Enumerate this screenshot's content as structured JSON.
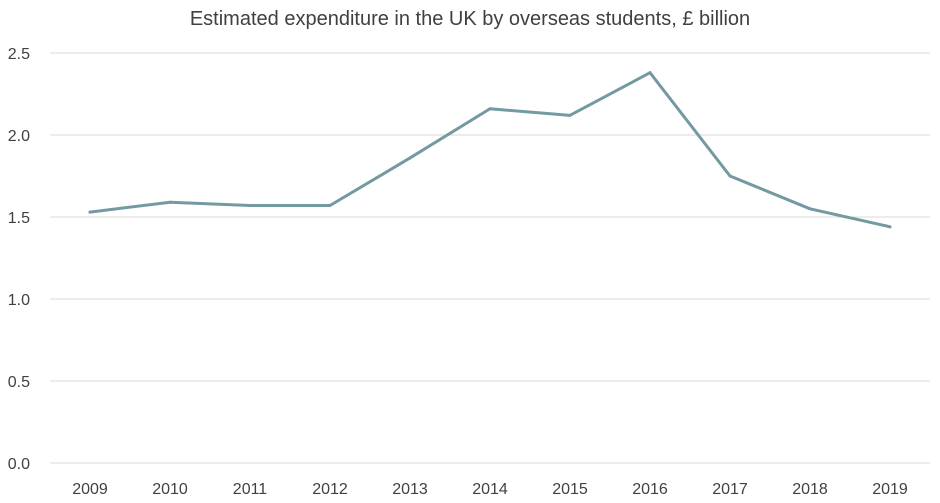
{
  "chart_data": {
    "type": "line",
    "title": "Estimated expenditure in the UK by overseas students, £ billion",
    "xlabel": "",
    "ylabel": "",
    "ylim": [
      0,
      2.5
    ],
    "yticks": [
      "0.0",
      "0.5",
      "1.0",
      "1.5",
      "2.0",
      "2.5"
    ],
    "grid": true,
    "legend": "none",
    "categories": [
      "2009",
      "2010",
      "2011",
      "2012",
      "2013",
      "2014",
      "2015",
      "2016",
      "2017",
      "2018",
      "2019"
    ],
    "series": [
      {
        "name": "Estimated expenditure",
        "color": "#7399a1",
        "values": [
          1.53,
          1.59,
          1.57,
          1.57,
          1.86,
          2.16,
          2.12,
          2.38,
          1.75,
          1.55,
          1.44
        ]
      }
    ]
  }
}
